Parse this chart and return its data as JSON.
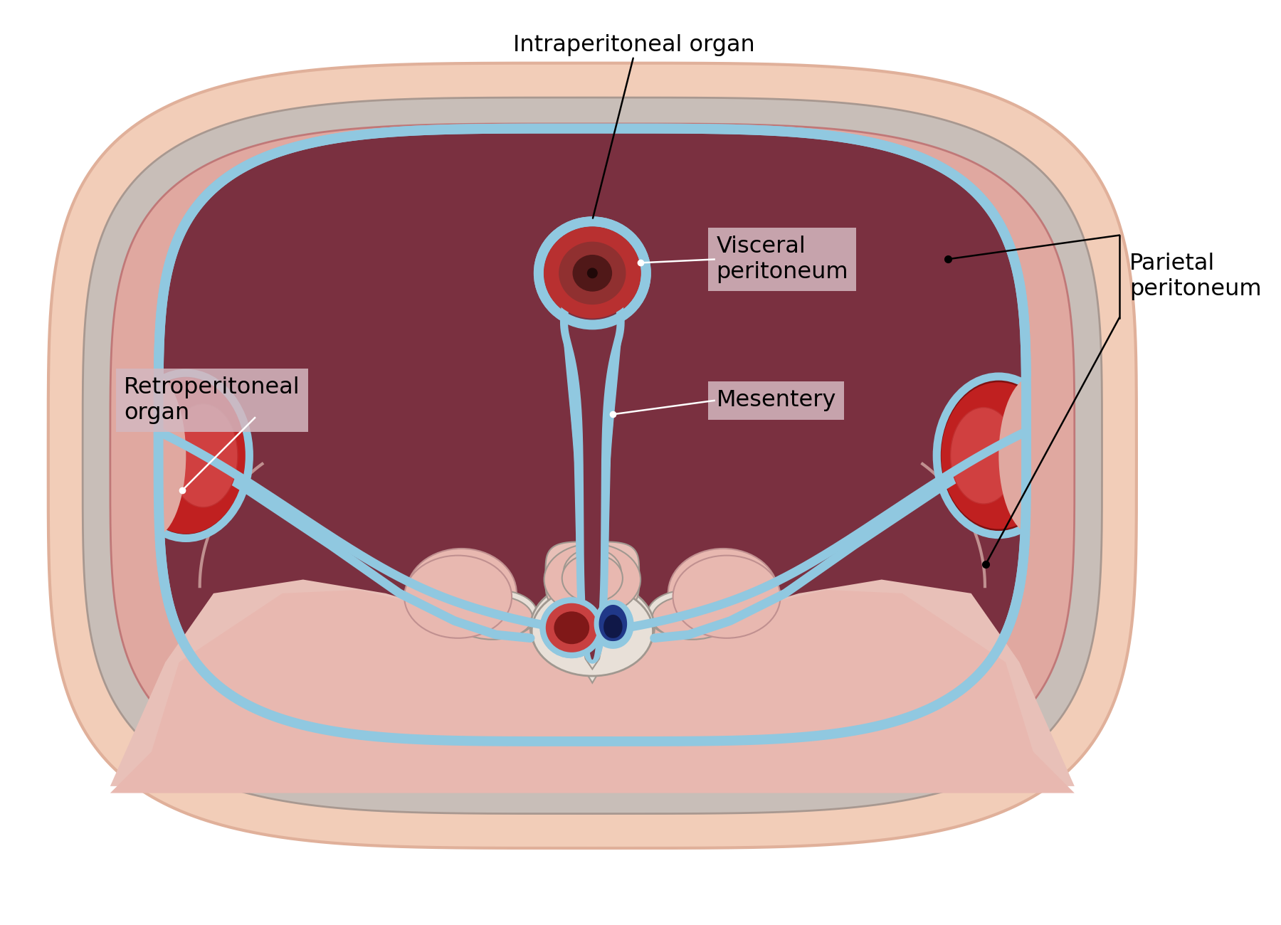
{
  "bg_color": "#ffffff",
  "skin_fat_color": "#f2cdb8",
  "skin_fat_edge": "#e0b09a",
  "gray_fascia_color": "#c8beb8",
  "gray_fascia_edge": "#a89890",
  "muscle_pink_color": "#e0a8a0",
  "muscle_pink_edge": "#c07878",
  "cavity_color": "#7a3040",
  "cavity_edge": "#5a2030",
  "peritoneum_blue": "#90c8e0",
  "peritoneum_blue_dark": "#6aace0",
  "mesentery_fill": "#7a3040",
  "organ_outer": "#b83030",
  "organ_mid": "#903030",
  "organ_inner": "#501818",
  "organ_center": "#200808",
  "kidney_red": "#c02020",
  "kidney_dark": "#801010",
  "kidney_hilum": "#d04040",
  "vessel_red_outer": "#c84040",
  "vessel_red_inner": "#801818",
  "vessel_blue_color": "#203888",
  "vessel_blue_dark": "#101848",
  "spine_white": "#e8e0d8",
  "spine_gray": "#c0b8b0",
  "spine_edge": "#a09890",
  "muscle_lower_color": "#e8c0b8",
  "muscle_lower_edge": "#c09090",
  "lower_dark_muscle": "#d09888",
  "lower_tissue": "#e8b8b0",
  "label_bg": "#d4b8c0",
  "text_color": "#000000",
  "white": "#ffffff",
  "black": "#000000",
  "title_text": "Intraperitoneal organ",
  "label_visceral": "Visceral\nperitoneum",
  "label_mesentery": "Mesentery",
  "label_retro": "Retroperitoneal\norgan",
  "label_parietal": "Parietal\nperitoneum",
  "font_size": 23
}
